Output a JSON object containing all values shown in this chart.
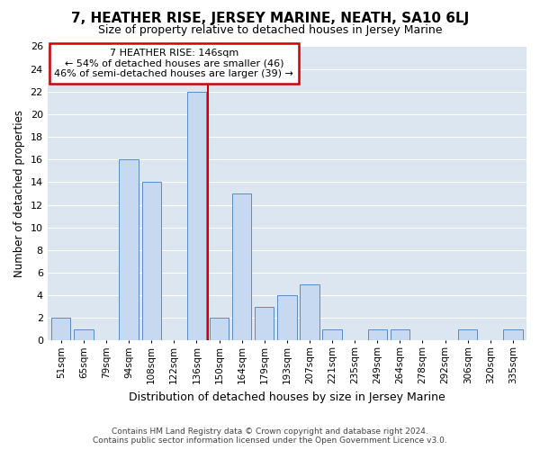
{
  "title": "7, HEATHER RISE, JERSEY MARINE, NEATH, SA10 6LJ",
  "subtitle": "Size of property relative to detached houses in Jersey Marine",
  "xlabel": "Distribution of detached houses by size in Jersey Marine",
  "ylabel": "Number of detached properties",
  "categories": [
    "51sqm",
    "65sqm",
    "79sqm",
    "94sqm",
    "108sqm",
    "122sqm",
    "136sqm",
    "150sqm",
    "164sqm",
    "179sqm",
    "193sqm",
    "207sqm",
    "221sqm",
    "235sqm",
    "249sqm",
    "264sqm",
    "278sqm",
    "292sqm",
    "306sqm",
    "320sqm",
    "335sqm"
  ],
  "values": [
    2,
    1,
    0,
    16,
    14,
    0,
    22,
    2,
    13,
    3,
    4,
    5,
    1,
    0,
    1,
    1,
    0,
    0,
    1,
    0,
    1
  ],
  "bar_color": "#c6d9f0",
  "bar_edge_color": "#5a8ac6",
  "vline_x_index": 7,
  "vline_color": "#cc0000",
  "annotation_text": "7 HEATHER RISE: 146sqm\n← 54% of detached houses are smaller (46)\n46% of semi-detached houses are larger (39) →",
  "annotation_box_color": "#ffffff",
  "annotation_box_edge": "#cc0000",
  "ylim": [
    0,
    26
  ],
  "yticks": [
    0,
    2,
    4,
    6,
    8,
    10,
    12,
    14,
    16,
    18,
    20,
    22,
    24,
    26
  ],
  "background_color": "#dce6f1",
  "title_fontsize": 11,
  "subtitle_fontsize": 9,
  "footer1": "Contains HM Land Registry data © Crown copyright and database right 2024.",
  "footer2": "Contains public sector information licensed under the Open Government Licence v3.0."
}
